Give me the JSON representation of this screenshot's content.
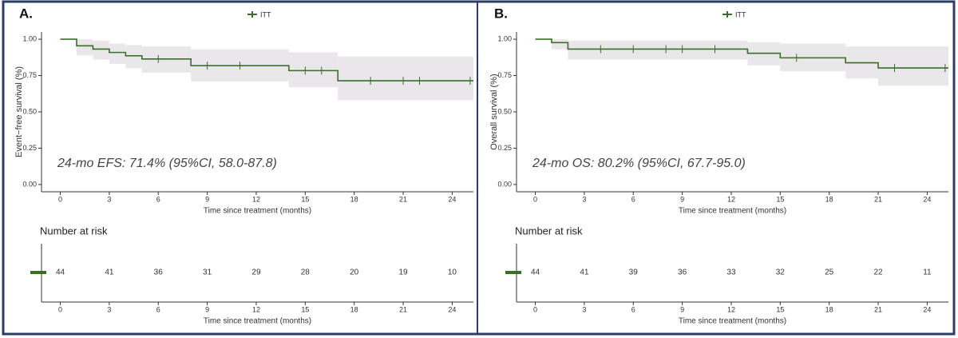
{
  "chart_data": [
    {
      "type": "step",
      "panel_label": "A.",
      "legend": "top",
      "ylabel": "Event−free survival (%)",
      "xlabel": "Time since treatment (months)",
      "annotation": "24-mo EFS: 71.4% (95%CI, 58.0-87.8)",
      "ci_color": "#e9e7e9",
      "xlim": [
        -1.15,
        25.3
      ],
      "ylim": [
        -0.05,
        1.05
      ],
      "xticks": [
        0,
        3,
        6,
        9,
        12,
        15,
        18,
        21,
        24
      ],
      "yticks": [
        {
          "value": 0,
          "label": "0.00"
        },
        {
          "value": 0.25,
          "label": "0.25"
        },
        {
          "value": 0.5,
          "label": "0.50"
        },
        {
          "value": 0.75,
          "label": "0.75"
        },
        {
          "value": 1,
          "label": "1.00"
        }
      ],
      "series": [
        {
          "name": "ITT",
          "color": "#3b6e2b",
          "x": [
            0,
            1,
            2,
            3,
            4,
            5,
            8,
            14,
            17
          ],
          "values": [
            1.0,
            0.955,
            0.932,
            0.909,
            0.886,
            0.864,
            0.818,
            0.784,
            0.714
          ],
          "ci_lower": [
            1.0,
            0.89,
            0.86,
            0.83,
            0.8,
            0.77,
            0.71,
            0.67,
            0.58
          ],
          "ci_upper": [
            1.0,
            1.0,
            0.99,
            0.97,
            0.96,
            0.95,
            0.93,
            0.91,
            0.88
          ],
          "censor_x": [
            6,
            9,
            11,
            15,
            16,
            19,
            21,
            22,
            25.1
          ],
          "censor_values": [
            0.864,
            0.818,
            0.818,
            0.784,
            0.784,
            0.714,
            0.714,
            0.714,
            0.714
          ]
        }
      ],
      "at_risk": {
        "title": "Number at risk",
        "values": [
          44,
          41,
          36,
          31,
          29,
          28,
          20,
          19,
          10
        ]
      }
    },
    {
      "type": "step",
      "panel_label": "B.",
      "legend": "top",
      "ylabel": "Overall survival (%)",
      "xlabel": "Time since treatment (months)",
      "annotation": "24-mo OS: 80.2% (95%CI, 67.7-95.0)",
      "ci_color": "#e9e7e9",
      "xlim": [
        -1.15,
        25.3
      ],
      "ylim": [
        -0.05,
        1.05
      ],
      "xticks": [
        0,
        3,
        6,
        9,
        12,
        15,
        18,
        21,
        24
      ],
      "yticks": [
        {
          "value": 0,
          "label": "0.00"
        },
        {
          "value": 0.25,
          "label": "0.25"
        },
        {
          "value": 0.5,
          "label": "0.50"
        },
        {
          "value": 0.75,
          "label": "0.75"
        },
        {
          "value": 1,
          "label": "1.00"
        }
      ],
      "series": [
        {
          "name": "ITT",
          "color": "#3b6e2b",
          "x": [
            0,
            1,
            2,
            13,
            15,
            19,
            21
          ],
          "values": [
            1.0,
            0.977,
            0.932,
            0.903,
            0.872,
            0.838,
            0.802
          ],
          "ci_lower": [
            1.0,
            0.93,
            0.86,
            0.82,
            0.78,
            0.73,
            0.68
          ],
          "ci_upper": [
            1.0,
            1.0,
            0.99,
            0.98,
            0.97,
            0.95,
            0.95
          ],
          "censor_x": [
            4,
            6,
            8,
            9,
            11,
            16,
            22,
            25.1
          ],
          "censor_values": [
            0.932,
            0.932,
            0.932,
            0.932,
            0.932,
            0.872,
            0.802,
            0.802
          ]
        }
      ],
      "at_risk": {
        "title": "Number at risk",
        "values": [
          44,
          41,
          39,
          36,
          33,
          32,
          25,
          22,
          11
        ]
      }
    }
  ]
}
